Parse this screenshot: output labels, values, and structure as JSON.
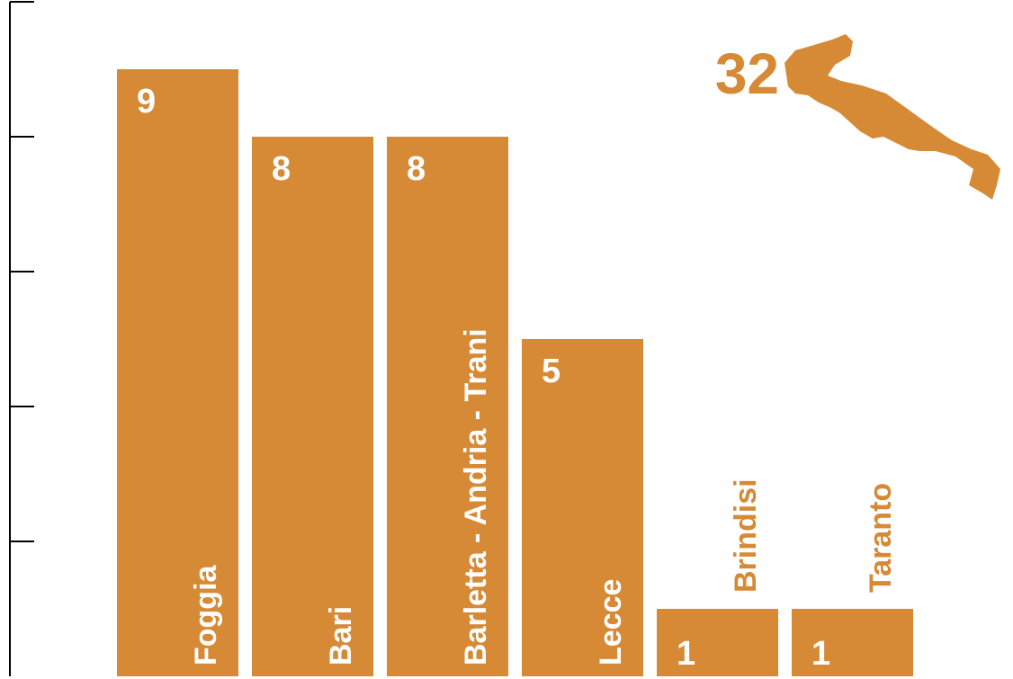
{
  "chart_data": {
    "type": "bar",
    "categories": [
      "Foggia",
      "Bari",
      "Barletta - Andria - Trani",
      "Lecce",
      "Brindisi",
      "Taranto"
    ],
    "values": [
      9,
      8,
      8,
      5,
      1,
      1
    ],
    "ylim": [
      0,
      10
    ],
    "total": "32",
    "grid": false,
    "color": "#d68a36"
  }
}
